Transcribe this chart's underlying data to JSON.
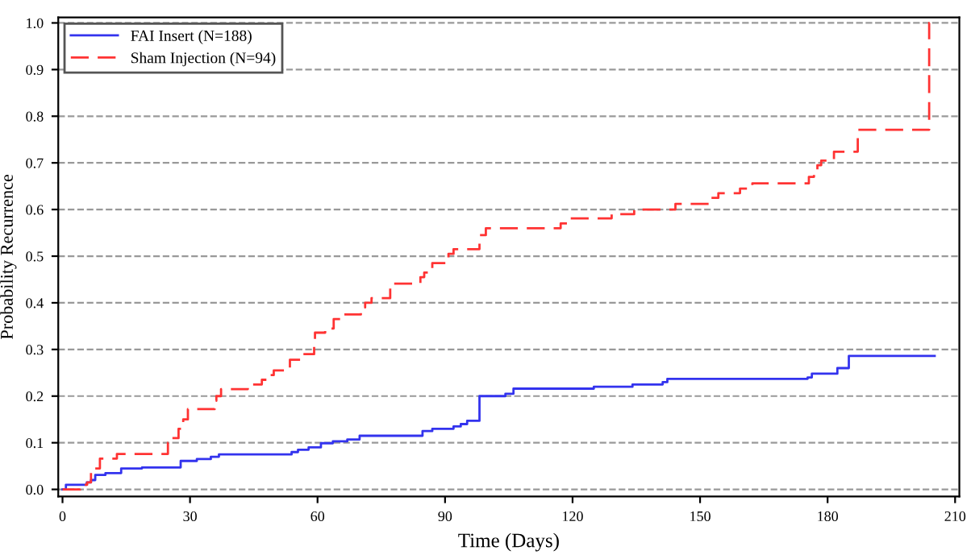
{
  "chart_data": {
    "type": "step",
    "xlabel": "Time (Days)",
    "ylabel": "Probability Recurrence",
    "series": [
      {
        "name": "FAI Insert (N=188)",
        "color": "#3333ee",
        "line_style": "solid",
        "x": [
          0,
          0.8,
          5.7,
          6.7,
          7.7,
          10.1,
          13.8,
          18.7,
          27.8,
          31.6,
          34.9,
          36.8,
          53.9,
          55.4,
          57.9,
          60.8,
          63.6,
          67,
          69.9,
          84.7,
          87,
          92,
          93.7,
          95.2,
          98.1,
          104.2,
          106.1,
          125,
          134.1,
          141.2,
          142.3,
          175.3,
          176.3,
          182.3,
          185,
          205.2
        ],
        "values": [
          0,
          0.01,
          0.015,
          0.02,
          0.031,
          0.035,
          0.045,
          0.047,
          0.061,
          0.065,
          0.07,
          0.075,
          0.08,
          0.085,
          0.09,
          0.099,
          0.103,
          0.107,
          0.115,
          0.125,
          0.13,
          0.135,
          0.14,
          0.147,
          0.2,
          0.205,
          0.216,
          0.22,
          0.225,
          0.23,
          0.237,
          0.24,
          0.248,
          0.26,
          0.286,
          0.286
        ]
      },
      {
        "name": "Sham Injection (N=94)",
        "color": "#ff3333",
        "line_style": "dashed",
        "x": [
          0,
          4.2,
          5.8,
          6.7,
          8.8,
          12.8,
          24.8,
          25.7,
          27.3,
          28.4,
          29.5,
          35.8,
          36.2,
          37.3,
          43.6,
          46.9,
          48,
          49.7,
          53.5,
          56.6,
          59.2,
          59.4,
          61.8,
          63.8,
          66.1,
          70.2,
          71.2,
          72.7,
          77.1,
          84.2,
          85.1,
          87,
          90.8,
          92,
          98.1,
          99.6,
          117.2,
          119.4,
          129.2,
          134.5,
          144.2,
          152.2,
          154.3,
          159.4,
          162.3,
          175.6,
          176.8,
          177.6,
          178.5,
          181.5,
          187.1,
          203.9,
          204
        ],
        "values": [
          0,
          0.01,
          0.015,
          0.045,
          0.066,
          0.076,
          0.1,
          0.11,
          0.13,
          0.15,
          0.172,
          0.19,
          0.2,
          0.215,
          0.225,
          0.235,
          0.245,
          0.255,
          0.278,
          0.29,
          0.31,
          0.336,
          0.345,
          0.365,
          0.375,
          0.39,
          0.4,
          0.41,
          0.441,
          0.455,
          0.465,
          0.485,
          0.505,
          0.515,
          0.545,
          0.56,
          0.57,
          0.581,
          0.59,
          0.6,
          0.612,
          0.625,
          0.635,
          0.645,
          0.656,
          0.67,
          0.68,
          0.695,
          0.705,
          0.724,
          0.771,
          1.0,
          1.0
        ]
      }
    ],
    "xlim": [
      -1,
      211
    ],
    "ylim": [
      -0.015,
      1.012
    ],
    "xticks": [
      0,
      30,
      60,
      90,
      120,
      150,
      180,
      210
    ],
    "yticks": [
      {
        "value": 0,
        "label": "0.0"
      },
      0.1,
      0.2,
      0.3,
      0.4,
      0.5,
      0.6,
      0.7,
      0.8,
      0.9,
      {
        "value": 1,
        "label": "1.0"
      }
    ],
    "grid": "y",
    "legend": "top left"
  }
}
